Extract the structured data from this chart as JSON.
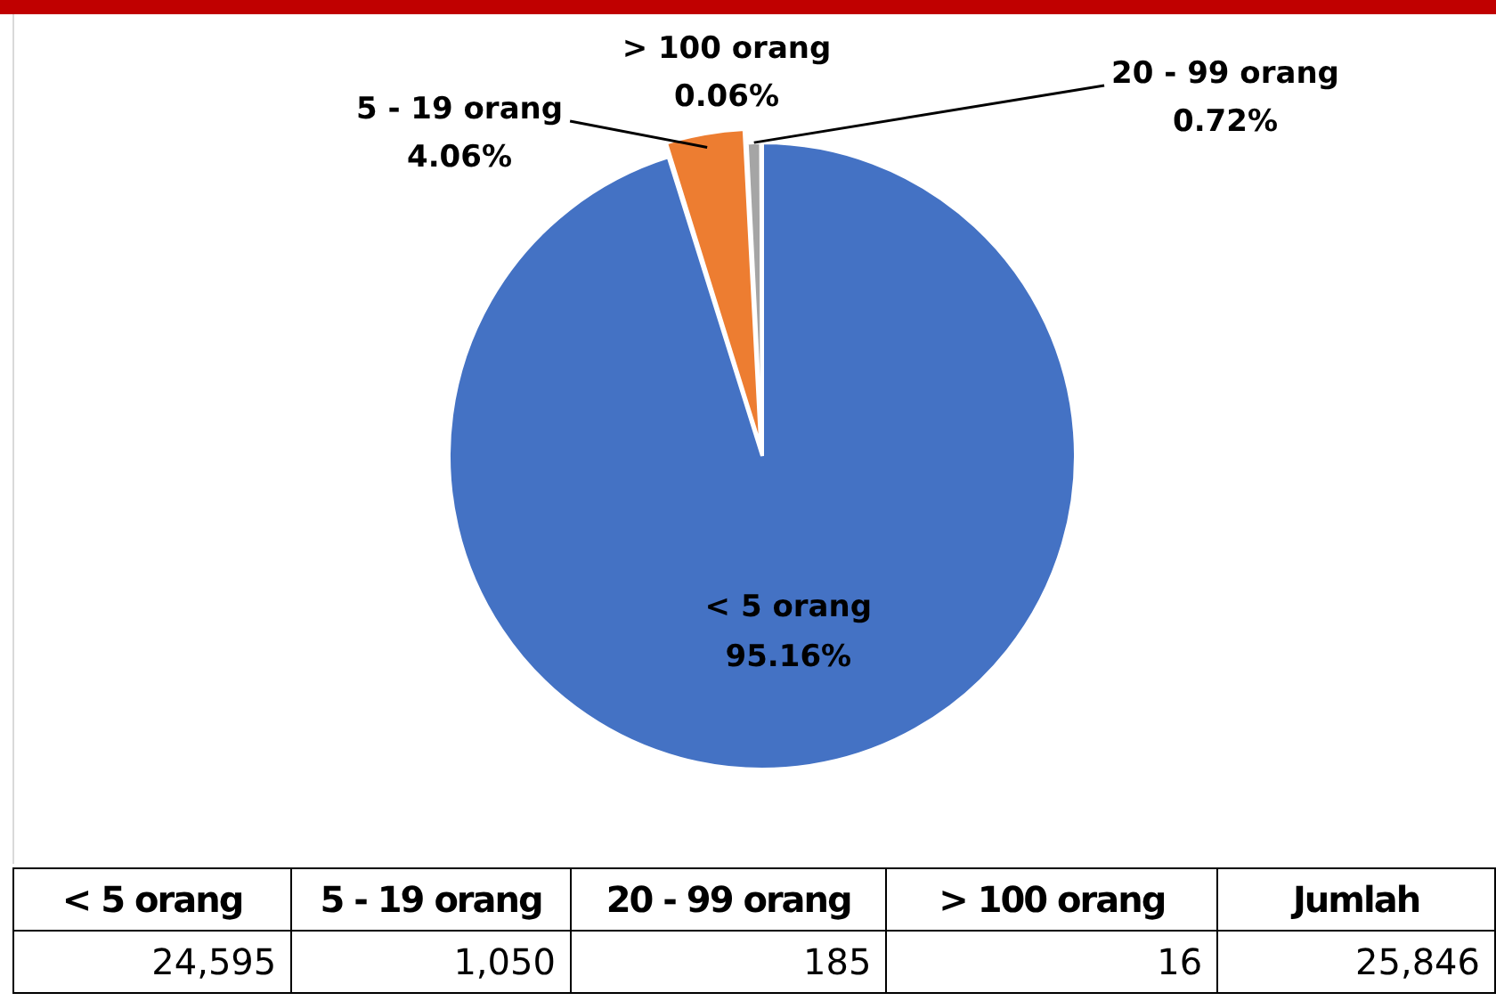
{
  "chart_data": {
    "type": "pie",
    "categories": [
      "< 5 orang",
      "5 - 19 orang",
      "20 - 99 orang",
      "> 100 orang"
    ],
    "values": [
      95.16,
      4.06,
      0.72,
      0.06
    ],
    "colors": [
      "#4472c4",
      "#ed7d31",
      "#a5a5a5",
      "#ffc000"
    ],
    "value_labels": [
      "95.16%",
      "4.06%",
      "0.72%",
      "0.06%"
    ],
    "annotations": [
      "Jumlah",
      "24,595",
      "1,050",
      "185",
      "16",
      "25,846"
    ],
    "legend": false
  }
}
